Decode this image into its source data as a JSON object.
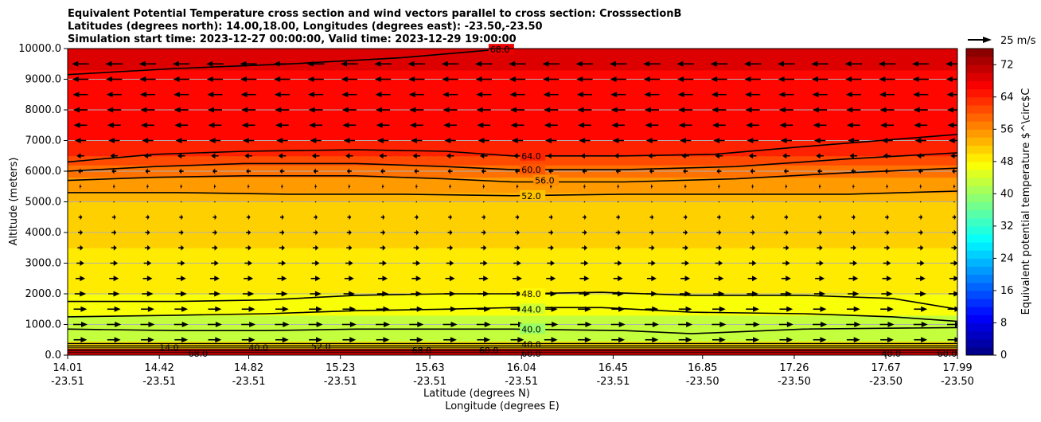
{
  "chart_data": {
    "type": "heatmap",
    "title_lines": [
      "Equivalent Potential Temperature cross section and wind vectors parallel to cross section: CrosssectionB",
      "Latitudes (degrees north): 14.00,18.00, Longitudes (degrees east): -23.50,-23.50",
      "Simulation start time: 2023-12-27 00:00:00, Valid time: 2023-12-29 19:00:00"
    ],
    "ylabel": "Altitude (meters)",
    "xlabel": "Latitude (degrees N)",
    "xlabel2": "Longitude (degrees E)",
    "ylim": [
      0,
      10000
    ],
    "xlim": [
      14.01,
      17.99
    ],
    "y_ticks": [
      "0.0",
      "1000.0",
      "2000.0",
      "3000.0",
      "4000.0",
      "5000.0",
      "6000.0",
      "7000.0",
      "8000.0",
      "9000.0",
      "10000.0"
    ],
    "x_ticks": [
      {
        "lat": "14.01",
        "lon": "-23.51"
      },
      {
        "lat": "14.42",
        "lon": "-23.51"
      },
      {
        "lat": "14.82",
        "lon": "-23.51"
      },
      {
        "lat": "15.23",
        "lon": "-23.51"
      },
      {
        "lat": "15.63",
        "lon": "-23.51"
      },
      {
        "lat": "16.04",
        "lon": "-23.51"
      },
      {
        "lat": "16.45",
        "lon": "-23.51"
      },
      {
        "lat": "16.85",
        "lon": "-23.50"
      },
      {
        "lat": "17.26",
        "lon": "-23.50"
      },
      {
        "lat": "17.67",
        "lon": "-23.50"
      },
      {
        "lat": "17.99",
        "lon": "-23.50"
      }
    ],
    "grid": {
      "horizontal": true,
      "vertical": false
    },
    "colorbar": {
      "label": "Equivalent potential temperature $^\\circ$C",
      "min": 0,
      "max": 76,
      "step": 2,
      "ticks": [
        "0",
        "8",
        "16",
        "24",
        "32",
        "40",
        "48",
        "56",
        "64",
        "72"
      ]
    },
    "vector_key": {
      "label": "25 m/s"
    },
    "fill_bands": [
      {
        "alt_top": 200,
        "theta": 68
      },
      {
        "alt_top": 450,
        "theta": 50
      },
      {
        "alt_top": 1300,
        "theta": 43
      },
      {
        "alt_top": 2000,
        "theta": 47
      },
      {
        "alt_top": 3500,
        "theta": 49
      },
      {
        "alt_top": 5000,
        "theta": 51
      },
      {
        "alt_top": 5300,
        "theta": 53
      },
      {
        "alt_top": 5800,
        "theta": 55
      },
      {
        "alt_top": 6200,
        "theta": 58
      },
      {
        "alt_top": 6500,
        "theta": 61
      },
      {
        "alt_top": 7000,
        "theta": 64
      },
      {
        "alt_top": 9300,
        "theta": 66
      },
      {
        "alt_top": 10000,
        "theta": 69
      }
    ],
    "contours": [
      {
        "level": "68.0",
        "points": [
          [
            14.01,
            9150
          ],
          [
            14.5,
            9350
          ],
          [
            15.0,
            9500
          ],
          [
            15.5,
            9700
          ],
          [
            15.9,
            9950
          ],
          [
            16.1,
            10050
          ]
        ],
        "label_at": [
          15.9,
          9970
        ]
      },
      {
        "level": "64.0",
        "points": [
          [
            14.01,
            6300
          ],
          [
            14.4,
            6550
          ],
          [
            14.8,
            6650
          ],
          [
            15.3,
            6700
          ],
          [
            15.7,
            6650
          ],
          [
            16.0,
            6500
          ],
          [
            16.5,
            6500
          ],
          [
            16.9,
            6550
          ],
          [
            17.3,
            6800
          ],
          [
            17.99,
            7200
          ]
        ],
        "label_at": [
          16.04,
          6500
        ]
      },
      {
        "level": "60.0",
        "points": [
          [
            14.01,
            6000
          ],
          [
            14.4,
            6150
          ],
          [
            14.8,
            6250
          ],
          [
            15.3,
            6250
          ],
          [
            15.7,
            6150
          ],
          [
            16.0,
            6050
          ],
          [
            16.5,
            6050
          ],
          [
            17.0,
            6150
          ],
          [
            17.5,
            6400
          ],
          [
            17.99,
            6600
          ]
        ],
        "label_at": [
          16.04,
          6050
        ]
      },
      {
        "level": "56.0",
        "points": [
          [
            14.01,
            5700
          ],
          [
            14.4,
            5800
          ],
          [
            14.8,
            5850
          ],
          [
            15.3,
            5850
          ],
          [
            15.7,
            5750
          ],
          [
            16.0,
            5650
          ],
          [
            16.5,
            5650
          ],
          [
            17.0,
            5750
          ],
          [
            17.5,
            5950
          ],
          [
            17.99,
            6100
          ]
        ],
        "label_at": [
          16.1,
          5700
        ]
      },
      {
        "level": "52.0",
        "points": [
          [
            14.01,
            5300
          ],
          [
            14.5,
            5300
          ],
          [
            15.0,
            5250
          ],
          [
            15.5,
            5250
          ],
          [
            16.0,
            5200
          ],
          [
            16.5,
            5250
          ],
          [
            17.0,
            5250
          ],
          [
            17.5,
            5250
          ],
          [
            17.99,
            5350
          ]
        ],
        "label_at": [
          16.04,
          5200
        ]
      },
      {
        "level": "48.0",
        "points": [
          [
            14.01,
            1750
          ],
          [
            14.5,
            1750
          ],
          [
            14.9,
            1800
          ],
          [
            15.3,
            1950
          ],
          [
            15.7,
            2000
          ],
          [
            16.0,
            2000
          ],
          [
            16.4,
            2050
          ],
          [
            16.8,
            1950
          ],
          [
            17.3,
            1950
          ],
          [
            17.7,
            1850
          ],
          [
            17.99,
            1500
          ]
        ],
        "label_at": [
          16.04,
          2000
        ]
      },
      {
        "level": "44.0",
        "points": [
          [
            14.01,
            1250
          ],
          [
            14.5,
            1300
          ],
          [
            14.9,
            1350
          ],
          [
            15.3,
            1450
          ],
          [
            15.7,
            1500
          ],
          [
            16.0,
            1550
          ],
          [
            16.4,
            1550
          ],
          [
            16.8,
            1400
          ],
          [
            17.3,
            1350
          ],
          [
            17.7,
            1250
          ],
          [
            17.99,
            1100
          ]
        ],
        "label_at": [
          16.04,
          1500
        ]
      },
      {
        "level": "40.0",
        "points": [
          [
            14.01,
            850
          ],
          [
            14.5,
            800
          ],
          [
            14.9,
            800
          ],
          [
            15.3,
            850
          ],
          [
            15.7,
            850
          ],
          [
            16.0,
            850
          ],
          [
            16.5,
            800
          ],
          [
            16.8,
            700
          ],
          [
            17.3,
            850
          ],
          [
            17.99,
            900
          ]
        ],
        "label_at": [
          16.04,
          850
        ]
      }
    ],
    "surface_labels": [
      {
        "text": "68.0",
        "lat": 15.9,
        "alt": 9970
      },
      {
        "text": "14.0",
        "lat": 14.42,
        "alt": 250
      },
      {
        "text": "68.0",
        "lat": 14.55,
        "alt": 50
      },
      {
        "text": "40.0",
        "lat": 14.82,
        "alt": 250
      },
      {
        "text": "52.0",
        "lat": 15.1,
        "alt": 280
      },
      {
        "text": "68.0",
        "lat": 15.55,
        "alt": 150
      },
      {
        "text": "60.0",
        "lat": 15.85,
        "alt": 150
      },
      {
        "text": "40.0",
        "lat": 16.04,
        "alt": 350
      },
      {
        "text": "60.0",
        "lat": 16.04,
        "alt": 50
      },
      {
        "text": "40.0",
        "lat": 17.65,
        "alt": 50
      },
      {
        "text": "60.0",
        "lat": 17.9,
        "alt": 50
      }
    ],
    "wind_rows": [
      {
        "alt": 9500,
        "u": -18
      },
      {
        "alt": 9000,
        "u": -17
      },
      {
        "alt": 8500,
        "u": -16
      },
      {
        "alt": 8000,
        "u": -15
      },
      {
        "alt": 7500,
        "u": -14
      },
      {
        "alt": 7000,
        "u": -12
      },
      {
        "alt": 6500,
        "u": -8
      },
      {
        "alt": 6000,
        "u": -5
      },
      {
        "alt": 5500,
        "u": -2
      },
      {
        "alt": 5000,
        "u": 1
      },
      {
        "alt": 4500,
        "u": 4
      },
      {
        "alt": 4000,
        "u": 5
      },
      {
        "alt": 3500,
        "u": 6
      },
      {
        "alt": 3000,
        "u": 8
      },
      {
        "alt": 2500,
        "u": 10
      },
      {
        "alt": 2000,
        "u": 12
      },
      {
        "alt": 1500,
        "u": 14
      },
      {
        "alt": 1000,
        "u": 15
      },
      {
        "alt": 500,
        "u": 14
      }
    ]
  }
}
